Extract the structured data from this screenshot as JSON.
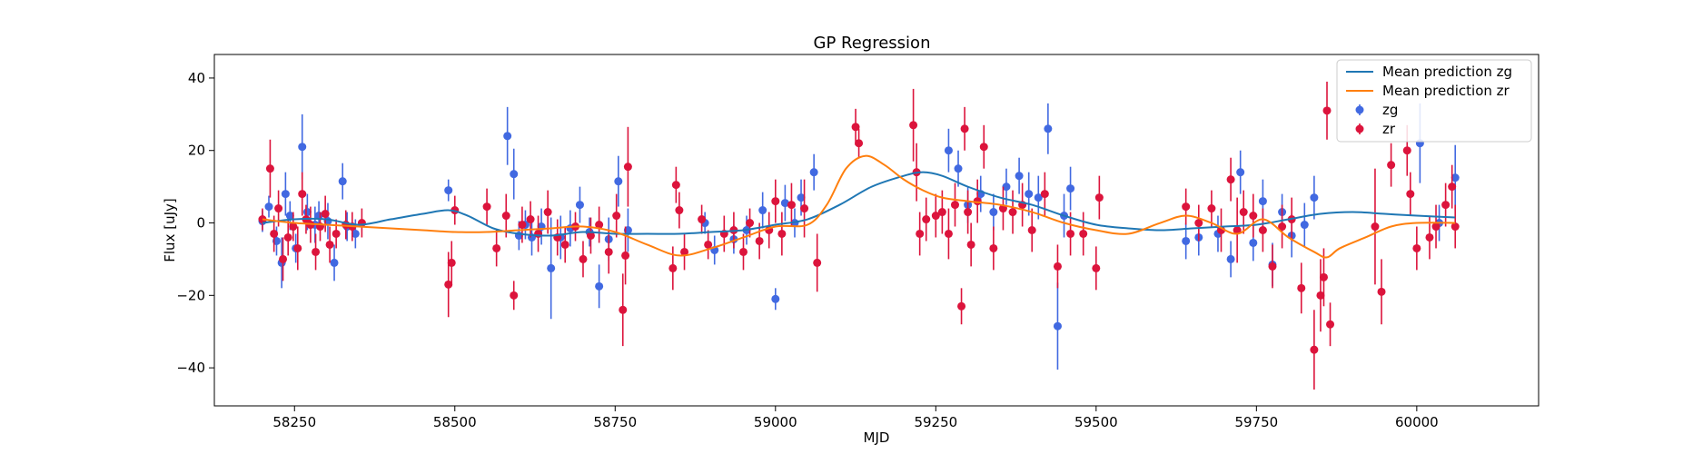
{
  "chart_data": {
    "type": "scatter",
    "title": "GP Regression",
    "xlabel": "MJD",
    "ylabel": "Flux [uJy]",
    "xlim": [
      58125,
      60190
    ],
    "ylim": [
      -50.5,
      46.5
    ],
    "xticks": [
      58250,
      58500,
      58750,
      59000,
      59250,
      59500,
      59750,
      60000
    ],
    "yticks": [
      -40,
      -20,
      0,
      20,
      40
    ],
    "legend_position": "top-right",
    "grid": false,
    "lines": [
      {
        "name": "Mean prediction zg",
        "color": "#1f77b4",
        "x": [
          58200,
          58250,
          58300,
          58350,
          58400,
          58450,
          58490,
          58520,
          58560,
          58600,
          58650,
          58700,
          58750,
          58800,
          58850,
          58900,
          58950,
          59000,
          59050,
          59100,
          59150,
          59200,
          59230,
          59260,
          59300,
          59350,
          59400,
          59450,
          59500,
          59550,
          59600,
          59650,
          59700,
          59750,
          59800,
          59850,
          59900,
          59950,
          60000,
          60060
        ],
        "y": [
          0,
          1,
          1,
          -0.5,
          1,
          2.5,
          3.5,
          2,
          -1.5,
          -3,
          -3.5,
          -2.5,
          -3,
          -3,
          -3,
          -2.5,
          -2,
          -0.5,
          1,
          5,
          10,
          13,
          14,
          13,
          10,
          7,
          5,
          2,
          -0.5,
          -1.5,
          -2,
          -1.5,
          -1,
          -0.5,
          1,
          2.5,
          3,
          2.5,
          2,
          1.5
        ]
      },
      {
        "name": "Mean prediction zr",
        "color": "#ff7f0e",
        "x": [
          58200,
          58250,
          58300,
          58350,
          58400,
          58450,
          58500,
          58550,
          58600,
          58650,
          58700,
          58750,
          58800,
          58850,
          58900,
          58950,
          59000,
          59050,
          59080,
          59110,
          59140,
          59170,
          59200,
          59230,
          59260,
          59300,
          59350,
          59400,
          59450,
          59500,
          59550,
          59600,
          59640,
          59680,
          59720,
          59760,
          59800,
          59840,
          59860,
          59880,
          59920,
          59960,
          60000,
          60060
        ],
        "y": [
          1,
          0,
          -0.5,
          -1,
          -1.5,
          -2,
          -2.5,
          -2.5,
          -2,
          -1.5,
          -1,
          -2.5,
          -6,
          -9,
          -7,
          -4,
          -1,
          -0.5,
          5,
          15,
          18.5,
          16,
          12,
          9,
          7,
          6,
          5,
          3,
          0,
          -2,
          -3,
          0,
          2,
          0,
          -3,
          1,
          -4,
          -8,
          -9.5,
          -7,
          -4,
          -1,
          0,
          0
        ]
      }
    ],
    "series": [
      {
        "name": "zg",
        "color": "#4169e1",
        "x": [
          58200,
          58210,
          58222,
          58230,
          58236,
          58243,
          58252,
          58262,
          58270,
          58282,
          58288,
          58302,
          58312,
          58325,
          58332,
          58345,
          58490,
          58582,
          58592,
          58600,
          58610,
          58620,
          58635,
          58650,
          58665,
          58680,
          58695,
          58710,
          58725,
          58740,
          58755,
          58770,
          58890,
          58905,
          58935,
          58955,
          58980,
          59000,
          59015,
          59030,
          59040,
          59060,
          59270,
          59285,
          59300,
          59320,
          59340,
          59360,
          59380,
          59395,
          59410,
          59425,
          59440,
          59450,
          59460,
          59640,
          59660,
          59690,
          59710,
          59725,
          59745,
          59760,
          59775,
          59790,
          59805,
          59825,
          59840,
          60005,
          60035,
          60060
        ],
        "y": [
          0.5,
          4.5,
          -5,
          -11,
          8,
          2,
          -7,
          21,
          3,
          -0.5,
          2,
          0.5,
          -11,
          11.5,
          -1,
          -3,
          9,
          24,
          13.5,
          -3.5,
          -0.5,
          -4,
          -1,
          -12.5,
          -4,
          -1.5,
          5,
          -2.5,
          -17.5,
          -4.5,
          11.5,
          -2,
          0,
          -7.5,
          -4.5,
          -2,
          3.5,
          -21,
          5.5,
          0,
          7,
          14,
          20,
          15,
          5,
          8,
          3,
          10,
          13,
          8,
          7,
          26,
          -28.5,
          2,
          9.5,
          -5,
          -4,
          -3,
          -10,
          14,
          -5.5,
          6,
          -11.5,
          3,
          -3.5,
          -0.5,
          7,
          22,
          0,
          12.5
        ],
        "yerr": [
          3,
          3,
          4,
          7,
          6,
          4,
          4,
          9,
          5,
          5,
          4,
          5,
          5,
          5,
          4,
          4,
          3,
          8,
          7,
          4,
          4,
          5,
          5,
          14,
          6,
          5,
          5,
          4,
          6,
          6,
          7,
          6,
          3,
          4,
          4,
          4,
          5,
          3,
          5,
          4,
          5,
          5,
          6,
          5,
          5,
          5,
          5,
          5,
          5,
          6,
          6,
          7,
          12,
          6,
          6,
          5,
          5,
          5,
          5,
          6,
          5,
          6,
          6,
          5,
          6,
          6,
          6,
          11,
          5,
          9
        ],
        "marker": "circle"
      },
      {
        "name": "zr",
        "color": "#dc143c",
        "x": [
          58200,
          58212,
          58218,
          58225,
          58232,
          58240,
          58248,
          58255,
          58262,
          58268,
          58275,
          58283,
          58290,
          58298,
          58305,
          58315,
          58330,
          58340,
          58355,
          58490,
          58495,
          58500,
          58550,
          58565,
          58580,
          58592,
          58605,
          58618,
          58630,
          58645,
          58660,
          58672,
          58688,
          58700,
          58712,
          58725,
          58740,
          58752,
          58762,
          58766,
          58770,
          58840,
          58845,
          58850,
          58858,
          58885,
          58895,
          58920,
          58935,
          58950,
          58960,
          58975,
          58990,
          59000,
          59010,
          59025,
          59045,
          59065,
          59125,
          59130,
          59215,
          59220,
          59225,
          59235,
          59250,
          59260,
          59270,
          59280,
          59290,
          59295,
          59300,
          59305,
          59315,
          59325,
          59340,
          59355,
          59370,
          59385,
          59400,
          59420,
          59440,
          59460,
          59480,
          59500,
          59505,
          59640,
          59660,
          59680,
          59695,
          59710,
          59720,
          59730,
          59745,
          59760,
          59775,
          59790,
          59805,
          59820,
          59840,
          59850,
          59855,
          59860,
          59865,
          59935,
          59945,
          59960,
          59985,
          59990,
          60000,
          60020,
          60030,
          60045,
          60055,
          60060
        ],
        "y": [
          1,
          15,
          -3,
          4,
          -10,
          -4,
          -1,
          -7,
          8,
          1,
          -0.5,
          -8,
          -1,
          2.5,
          -6,
          -3,
          -0.5,
          -1,
          0,
          -17,
          -11,
          3.5,
          4.5,
          -7,
          2,
          -20,
          -0.5,
          1,
          -3,
          3,
          -4,
          -6,
          -1,
          -10,
          -3.5,
          -0.5,
          -8,
          2,
          -24,
          -9,
          15.5,
          -12.5,
          10.5,
          3.5,
          -8,
          1,
          -6,
          -3,
          -2,
          -8,
          0,
          -5,
          -2,
          6,
          -3,
          5,
          4,
          -11,
          26.5,
          22,
          27,
          14,
          -3,
          1,
          2,
          3,
          -3,
          5,
          -23,
          26,
          3,
          -6,
          6,
          21,
          -7,
          4,
          3,
          5,
          -2,
          8,
          -12,
          -3,
          -3,
          -12.5,
          7,
          4.5,
          0,
          4,
          -2,
          12,
          -2,
          3,
          2,
          -2,
          -12,
          -1,
          1,
          -18,
          -35,
          -20,
          -15,
          31,
          -28,
          -1,
          -19,
          16,
          20,
          8,
          -7,
          -4,
          -1,
          5,
          10,
          -1
        ],
        "yerr": [
          3,
          8,
          5,
          5,
          6,
          5,
          4,
          6,
          6,
          4,
          5,
          5,
          4,
          5,
          5,
          4,
          4,
          4,
          4,
          9,
          6,
          4,
          5,
          5,
          6,
          4,
          5,
          5,
          5,
          6,
          5,
          5,
          4,
          5,
          5,
          5,
          6,
          6,
          10,
          8,
          11,
          6,
          5,
          5,
          5,
          4,
          4,
          5,
          5,
          5,
          4,
          5,
          5,
          6,
          6,
          6,
          8,
          8,
          5,
          4,
          10,
          8,
          6,
          6,
          6,
          6,
          7,
          6,
          5,
          6,
          6,
          6,
          6,
          6,
          6,
          6,
          6,
          6,
          6,
          6,
          6,
          6,
          6,
          6,
          6,
          5,
          5,
          5,
          6,
          6,
          9,
          6,
          6,
          6,
          6,
          6,
          6,
          7,
          11,
          10,
          8,
          8,
          6,
          16,
          9,
          6,
          7,
          6,
          6,
          6,
          6,
          6,
          6,
          6
        ],
        "marker": "circle"
      }
    ]
  }
}
